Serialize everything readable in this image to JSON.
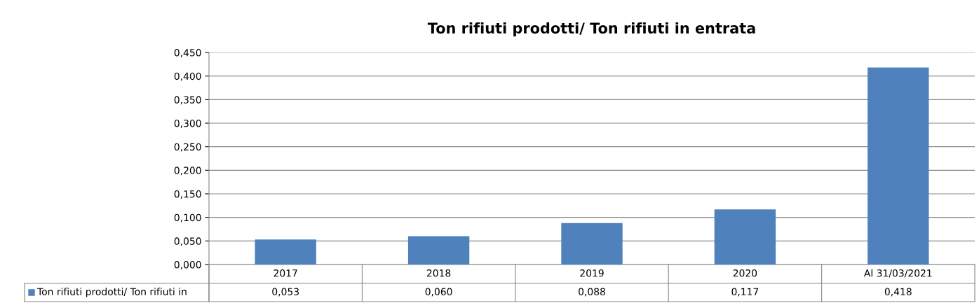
{
  "chart_data": {
    "type": "bar",
    "title": "Ton rifiuti prodotti/ Ton rifiuti in entrata",
    "categories": [
      "2017",
      "2018",
      "2019",
      "2020",
      "Al 31/03/2021"
    ],
    "series": [
      {
        "name": "Ton rifiuti prodotti/ Ton rifiuti in",
        "color": "#4f81bd",
        "values": [
          0.053,
          0.06,
          0.088,
          0.117,
          0.418
        ],
        "value_labels": [
          "0,053",
          "0,060",
          "0,088",
          "0,117",
          "0,418"
        ]
      }
    ],
    "ylim": [
      0,
      0.45
    ],
    "yticks": [
      {
        "value": 0,
        "label": "0,000"
      },
      {
        "value": 0.05,
        "label": "0,050"
      },
      {
        "value": 0.1,
        "label": "0,100"
      },
      {
        "value": 0.15,
        "label": "0,150"
      },
      {
        "value": 0.2,
        "label": "0,200"
      },
      {
        "value": 0.25,
        "label": "0,250"
      },
      {
        "value": 0.3,
        "label": "0,300"
      },
      {
        "value": 0.35,
        "label": "0,350"
      },
      {
        "value": 0.4,
        "label": "0,400"
      },
      {
        "value": 0.45,
        "label": "0,450"
      }
    ],
    "grid": "y",
    "legend": "bottom"
  }
}
